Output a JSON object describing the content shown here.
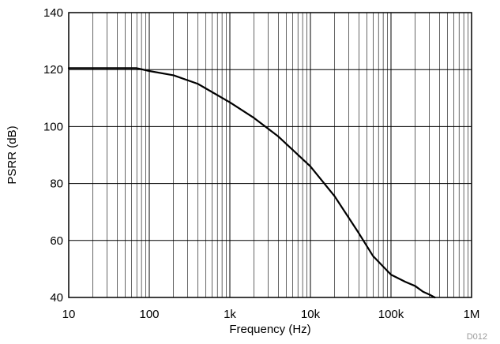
{
  "chart_data": {
    "type": "line",
    "title": "",
    "xlabel": "Frequency (Hz)",
    "ylabel": "PSRR (dB)",
    "xscale": "log",
    "xlim": [
      10,
      1000000
    ],
    "ylim": [
      40,
      140
    ],
    "grid": true,
    "legend": "none",
    "x_ticks": [
      10,
      100,
      1000,
      10000,
      100000,
      1000000
    ],
    "x_tick_labels": [
      "10",
      "100",
      "1k",
      "10k",
      "100k",
      "1M"
    ],
    "y_ticks": [
      40,
      60,
      80,
      100,
      120,
      140
    ],
    "y_tick_labels": [
      "40",
      "60",
      "80",
      "100",
      "120",
      "140"
    ],
    "series": [
      {
        "color": "#000000",
        "x": [
          10,
          30,
          70,
          100,
          200,
          400,
          1000,
          2000,
          4000,
          10000,
          20000,
          40000,
          60000,
          100000,
          150000,
          200000,
          250000,
          300000,
          350000
        ],
        "y": [
          120.5,
          120.5,
          120.5,
          119.5,
          118,
          115,
          108.5,
          103,
          96.5,
          86,
          75.5,
          62.5,
          54.5,
          48,
          45.5,
          44,
          42,
          41,
          40
        ]
      }
    ]
  },
  "footnote": "D012"
}
